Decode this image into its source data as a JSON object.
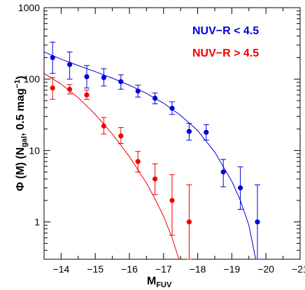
{
  "chart_data": {
    "type": "scatter",
    "title": "",
    "xlabel": "M",
    "xlabel_sub": "FUV",
    "ylabel_prefix": "Φ (M) (N",
    "ylabel_sub": "gal",
    "ylabel_suffix": ", 0.5 mag",
    "ylabel_sup": "−1",
    "ylabel_close": ")",
    "xlim": [
      -13.5,
      -21
    ],
    "ylim": [
      0.3,
      1000
    ],
    "yscale": "log",
    "x_ticks": [
      -14,
      -15,
      -16,
      -17,
      -18,
      -19,
      -20,
      -21
    ],
    "x_tick_labels": [
      "−14",
      "−15",
      "−16",
      "−17",
      "−18",
      "−19",
      "−20",
      "−21"
    ],
    "y_ticks": [
      1,
      10,
      100,
      1000
    ],
    "y_tick_labels": [
      "1",
      "10",
      "100",
      "1000"
    ],
    "grid": false,
    "legend_position": "top-right",
    "series": [
      {
        "name": "NUV−R < 4.5",
        "color": "#0000dd",
        "marker": "circle",
        "points": [
          {
            "x": -13.75,
            "y": 200,
            "lo": 120,
            "hi": 330
          },
          {
            "x": -14.25,
            "y": 160,
            "lo": 100,
            "hi": 240
          },
          {
            "x": -14.75,
            "y": 108,
            "lo": 75,
            "hi": 155
          },
          {
            "x": -15.25,
            "y": 105,
            "lo": 80,
            "hi": 140
          },
          {
            "x": -15.75,
            "y": 92,
            "lo": 72,
            "hi": 115
          },
          {
            "x": -16.25,
            "y": 68,
            "lo": 56,
            "hi": 82
          },
          {
            "x": -16.75,
            "y": 54,
            "lo": 45,
            "hi": 64
          },
          {
            "x": -17.25,
            "y": 39,
            "lo": 32,
            "hi": 48
          },
          {
            "x": -17.75,
            "y": 18.5,
            "lo": 14,
            "hi": 24
          },
          {
            "x": -18.25,
            "y": 18,
            "lo": 14,
            "hi": 23
          },
          {
            "x": -18.75,
            "y": 5,
            "lo": 3.1,
            "hi": 7.5
          },
          {
            "x": -19.25,
            "y": 3,
            "lo": 1.5,
            "hi": 5.9
          },
          {
            "x": -19.75,
            "y": 1,
            "lo": 0.3,
            "hi": 3.3
          }
        ],
        "fit": [
          {
            "x": -13.5,
            "y": 240
          },
          {
            "x": -14.0,
            "y": 190
          },
          {
            "x": -14.5,
            "y": 155
          },
          {
            "x": -15.0,
            "y": 127
          },
          {
            "x": -15.5,
            "y": 103
          },
          {
            "x": -16.0,
            "y": 82
          },
          {
            "x": -16.5,
            "y": 63
          },
          {
            "x": -17.0,
            "y": 46
          },
          {
            "x": -17.5,
            "y": 31
          },
          {
            "x": -18.0,
            "y": 19
          },
          {
            "x": -18.5,
            "y": 9.5
          },
          {
            "x": -19.0,
            "y": 3.7
          },
          {
            "x": -19.25,
            "y": 2.0
          },
          {
            "x": -19.5,
            "y": 0.9
          },
          {
            "x": -19.7,
            "y": 0.3
          }
        ]
      },
      {
        "name": "NUV−R > 4.5",
        "color": "#ee0000",
        "marker": "circle",
        "points": [
          {
            "x": -13.75,
            "y": 75,
            "lo": 52,
            "hi": 105
          },
          {
            "x": -14.25,
            "y": 72,
            "lo": 62,
            "hi": 84
          },
          {
            "x": -14.75,
            "y": 60,
            "lo": 52,
            "hi": 70
          },
          {
            "x": -15.25,
            "y": 22,
            "lo": 17,
            "hi": 29
          },
          {
            "x": -15.75,
            "y": 16,
            "lo": 12.5,
            "hi": 21
          },
          {
            "x": -16.25,
            "y": 7,
            "lo": 5.0,
            "hi": 9.7
          },
          {
            "x": -16.75,
            "y": 4,
            "lo": 2.4,
            "hi": 6.5
          },
          {
            "x": -17.25,
            "y": 2,
            "lo": 0.65,
            "hi": 4.6
          },
          {
            "x": -17.75,
            "y": 1,
            "lo": 0.3,
            "hi": 3.3
          }
        ],
        "fit": [
          {
            "x": -13.5,
            "y": 120
          },
          {
            "x": -14.0,
            "y": 85
          },
          {
            "x": -14.5,
            "y": 55
          },
          {
            "x": -15.0,
            "y": 32
          },
          {
            "x": -15.5,
            "y": 17
          },
          {
            "x": -16.0,
            "y": 8.2
          },
          {
            "x": -16.5,
            "y": 3.5
          },
          {
            "x": -16.75,
            "y": 2.1
          },
          {
            "x": -17.0,
            "y": 1.2
          },
          {
            "x": -17.25,
            "y": 0.6
          },
          {
            "x": -17.45,
            "y": 0.3
          }
        ]
      }
    ]
  }
}
